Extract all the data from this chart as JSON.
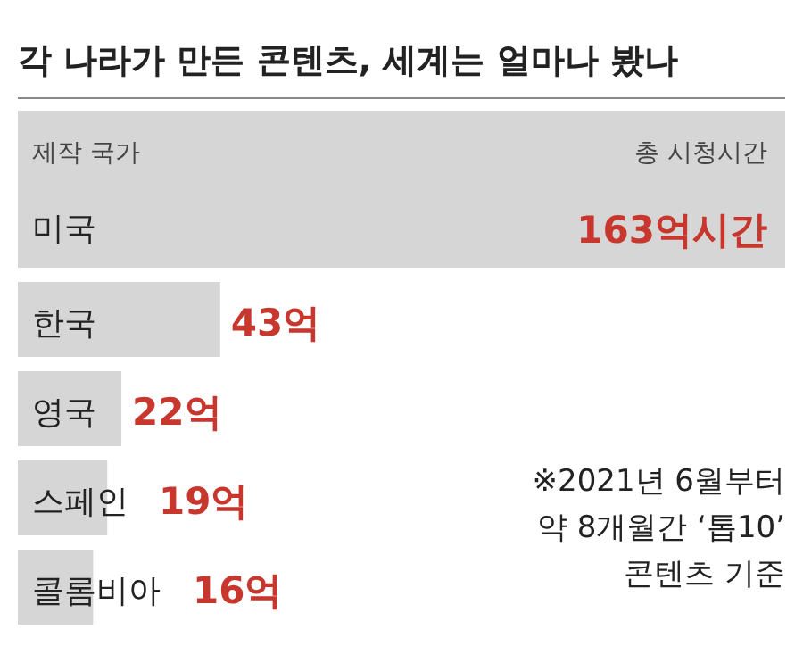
{
  "chart_data": {
    "type": "bar",
    "orientation": "horizontal",
    "title": "각 나라가 만든 콘텐츠, 세계는 얼마나 봤나",
    "ylabel": "제작 국가",
    "xlabel": "총 시청시간",
    "categories": [
      "미국",
      "한국",
      "영국",
      "스페인",
      "콜롬비아"
    ],
    "values": [
      163,
      43,
      22,
      19,
      16
    ],
    "value_labels": [
      "163억시간",
      "43억",
      "22억",
      "19억",
      "16억"
    ],
    "color": "#d6d6d6",
    "annotations": [
      "※2021년 6월부터",
      "약 8개월간 ‘톱10’",
      "콘텐츠 기준"
    ]
  }
}
